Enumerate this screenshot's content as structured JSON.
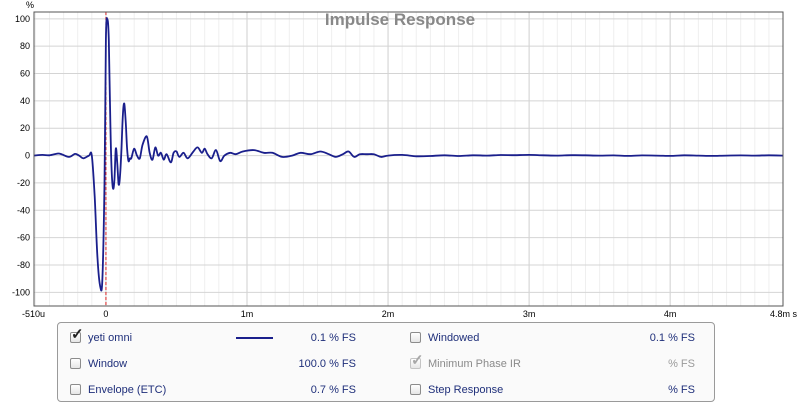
{
  "chart_data": {
    "type": "line",
    "title": "Impulse Response",
    "ylabel": "%",
    "xlim": [
      -0.00051,
      0.0048
    ],
    "ylim": [
      -110,
      105
    ],
    "grid": true,
    "x_ticks": [
      {
        "value": -0.00051,
        "label": "-510u"
      },
      {
        "value": 0,
        "label": "0"
      },
      {
        "value": 0.001,
        "label": "1m"
      },
      {
        "value": 0.002,
        "label": "2m"
      },
      {
        "value": 0.003,
        "label": "3m"
      },
      {
        "value": 0.004,
        "label": "4m"
      },
      {
        "value": 0.0048,
        "label": "4.8m s"
      }
    ],
    "y_ticks": [
      100,
      80,
      60,
      40,
      20,
      0,
      -20,
      -40,
      -60,
      -80,
      -100
    ],
    "marker_x": 0,
    "series": [
      {
        "name": "yeti omni",
        "color": "#1a1f8c",
        "points": [
          [
            -0.00051,
            0
          ],
          [
            -0.00045,
            0.5
          ],
          [
            -0.0004,
            0.2
          ],
          [
            -0.00034,
            1.5
          ],
          [
            -0.00031,
            0.8
          ],
          [
            -0.00026,
            -1
          ],
          [
            -0.00022,
            1.2
          ],
          [
            -0.00019,
            0
          ],
          [
            -0.00016,
            -2
          ],
          [
            -0.00012,
            0
          ],
          [
            -0.0001,
            0
          ],
          [
            -8e-05,
            -30
          ],
          [
            -6e-05,
            -75
          ],
          [
            -4e-05,
            -96
          ],
          [
            -2.5e-05,
            -90
          ],
          [
            -1e-05,
            -20
          ],
          [
            0,
            85
          ],
          [
            1e-05,
            100
          ],
          [
            2e-05,
            85
          ],
          [
            3e-05,
            30
          ],
          [
            4e-05,
            -10
          ],
          [
            5e-05,
            -24
          ],
          [
            6e-05,
            -18
          ],
          [
            7e-05,
            5
          ],
          [
            8e-05,
            -5
          ],
          [
            9e-05,
            -21
          ],
          [
            0.0001,
            -15
          ],
          [
            0.00011,
            5
          ],
          [
            0.00012,
            30
          ],
          [
            0.00013,
            38
          ],
          [
            0.00014,
            25
          ],
          [
            0.00015,
            5
          ],
          [
            0.00016,
            -4
          ],
          [
            0.00017,
            -2
          ],
          [
            0.00018,
            -2
          ],
          [
            0.0002,
            5
          ],
          [
            0.00022,
            0
          ],
          [
            0.00024,
            -2
          ],
          [
            0.00026,
            8
          ],
          [
            0.00029,
            14
          ],
          [
            0.00031,
            2
          ],
          [
            0.00033,
            -3
          ],
          [
            0.00035,
            6
          ],
          [
            0.00037,
            0
          ],
          [
            0.00039,
            2
          ],
          [
            0.00041,
            -3
          ],
          [
            0.00043,
            1
          ],
          [
            0.00046,
            -5
          ],
          [
            0.00048,
            2
          ],
          [
            0.0005,
            3
          ],
          [
            0.00052,
            -1
          ],
          [
            0.00055,
            2
          ],
          [
            0.00058,
            -2
          ],
          [
            0.00062,
            3
          ],
          [
            0.00065,
            6
          ],
          [
            0.00068,
            2
          ],
          [
            0.0007,
            5
          ],
          [
            0.00072,
            1
          ],
          [
            0.00075,
            -2
          ],
          [
            0.00078,
            4
          ],
          [
            0.00081,
            -4
          ],
          [
            0.00084,
            0
          ],
          [
            0.00088,
            2
          ],
          [
            0.00092,
            1
          ],
          [
            0.00097,
            3
          ],
          [
            0.00105,
            4
          ],
          [
            0.00112,
            2
          ],
          [
            0.00118,
            2
          ],
          [
            0.00125,
            -1
          ],
          [
            0.00132,
            0
          ],
          [
            0.00138,
            2
          ],
          [
            0.00145,
            1
          ],
          [
            0.00152,
            3
          ],
          [
            0.00158,
            1
          ],
          [
            0.00163,
            -1
          ],
          [
            0.00168,
            1
          ],
          [
            0.00172,
            3
          ],
          [
            0.00176,
            -1
          ],
          [
            0.0018,
            1
          ],
          [
            0.00185,
            1
          ],
          [
            0.0019,
            1
          ],
          [
            0.00195,
            -1
          ],
          [
            0.002,
            0
          ],
          [
            0.0021,
            0.5
          ],
          [
            0.0022,
            -0.5
          ],
          [
            0.0023,
            -0.3
          ],
          [
            0.0024,
            0.2
          ],
          [
            0.0025,
            -0.3
          ],
          [
            0.0026,
            0.2
          ],
          [
            0.0027,
            0
          ],
          [
            0.0028,
            0.4
          ],
          [
            0.0029,
            0.3
          ],
          [
            0.003,
            0.5
          ],
          [
            0.0031,
            0.2
          ],
          [
            0.0032,
            0
          ],
          [
            0.0033,
            0.3
          ],
          [
            0.0034,
            0.2
          ],
          [
            0.0035,
            0
          ],
          [
            0.0036,
            0.1
          ],
          [
            0.0037,
            -0.2
          ],
          [
            0.0038,
            0.1
          ],
          [
            0.0039,
            0
          ],
          [
            0.004,
            -0.2
          ],
          [
            0.0041,
            0.2
          ],
          [
            0.0042,
            0
          ],
          [
            0.0043,
            -0.2
          ],
          [
            0.0044,
            0
          ],
          [
            0.0045,
            0.1
          ],
          [
            0.0046,
            0
          ],
          [
            0.0047,
            0.2
          ],
          [
            0.0048,
            0
          ]
        ]
      }
    ]
  },
  "legend": {
    "rows": [
      {
        "label": "yeti omni",
        "checked": true,
        "disabled": false,
        "show_swatch": true,
        "value": "0.1 % FS",
        "value_disabled": false
      },
      {
        "label": "Window",
        "checked": false,
        "disabled": false,
        "show_swatch": false,
        "value": "100.0 % FS",
        "value_disabled": false
      },
      {
        "label": "Envelope (ETC)",
        "checked": false,
        "disabled": false,
        "show_swatch": false,
        "value": "0.7 % FS",
        "value_disabled": false
      },
      {
        "label": "Windowed",
        "checked": false,
        "disabled": false,
        "show_swatch": false,
        "value": "0.1 % FS",
        "value_disabled": false
      },
      {
        "label": "Minimum Phase IR",
        "checked": true,
        "disabled": true,
        "show_swatch": false,
        "value": "% FS",
        "value_disabled": true
      },
      {
        "label": "Step Response",
        "checked": false,
        "disabled": false,
        "show_swatch": false,
        "value": "% FS",
        "value_disabled": false
      }
    ]
  }
}
